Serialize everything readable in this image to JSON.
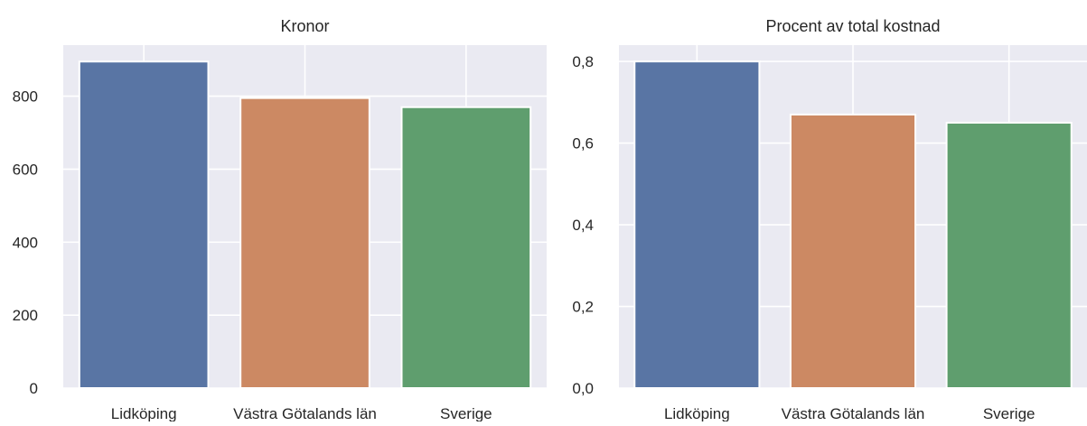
{
  "chart_data": [
    {
      "type": "bar",
      "title": "Kronor",
      "xlabel": "",
      "ylabel": "",
      "categories": [
        "Lidköping",
        "Västra Götalands län",
        "Sverige"
      ],
      "values": [
        895,
        795,
        770
      ],
      "colors": [
        "#5975a4",
        "#cc8963",
        "#5f9e6e"
      ],
      "ylim": [
        0,
        940
      ],
      "yticks": [
        0,
        200,
        400,
        600,
        800
      ],
      "ytick_labels": [
        "0",
        "200",
        "400",
        "600",
        "800"
      ],
      "grid": true,
      "background": "#eaeaf2"
    },
    {
      "type": "bar",
      "title": "Procent av total kostnad",
      "xlabel": "",
      "ylabel": "",
      "categories": [
        "Lidköping",
        "Västra Götalands län",
        "Sverige"
      ],
      "values": [
        0.8,
        0.67,
        0.65
      ],
      "colors": [
        "#5975a4",
        "#cc8963",
        "#5f9e6e"
      ],
      "ylim": [
        0,
        0.84
      ],
      "yticks": [
        0.0,
        0.2,
        0.4,
        0.6,
        0.8
      ],
      "ytick_labels": [
        "0,0",
        "0,2",
        "0,4",
        "0,6",
        "0,8"
      ],
      "grid": true,
      "background": "#eaeaf2"
    }
  ]
}
